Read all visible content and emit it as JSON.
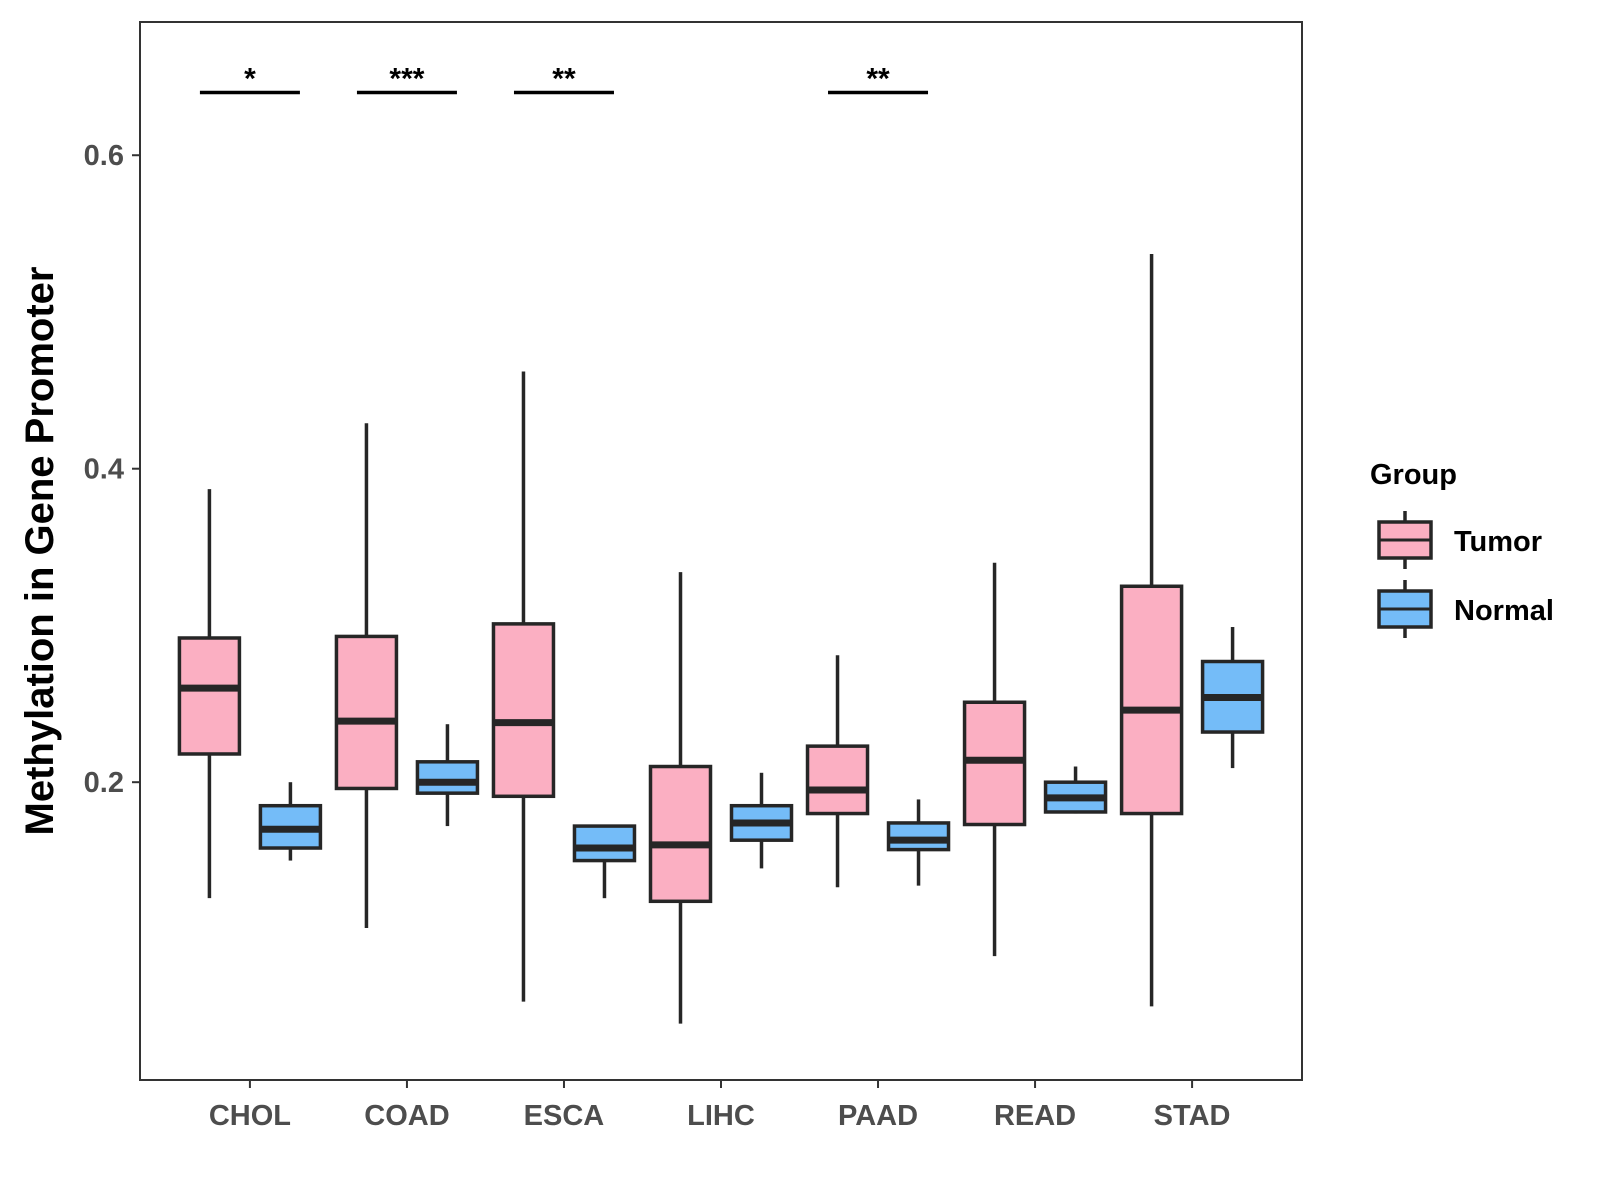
{
  "chart_data": {
    "type": "boxplot",
    "title": "",
    "xlabel": "",
    "ylabel": "Methylation in Gene Promoter",
    "ylim": [
      0.01,
      0.685
    ],
    "yticks": [
      0.2,
      0.4,
      0.6
    ],
    "ytick_labels": [
      "0.2",
      "0.4",
      "0.6"
    ],
    "categories": [
      "CHOL",
      "COAD",
      "ESCA",
      "LIHC",
      "PAAD",
      "READ",
      "STAD"
    ],
    "legend": {
      "title": "Group",
      "position": "right",
      "entries": [
        {
          "name": "Tumor",
          "color": "#fbafc2"
        },
        {
          "name": "Normal",
          "color": "#74bcf8"
        }
      ]
    },
    "series": [
      {
        "name": "Tumor",
        "color": "#fbafc2",
        "boxes": [
          {
            "min": 0.126,
            "q1": 0.218,
            "median": 0.26,
            "q3": 0.292,
            "max": 0.387
          },
          {
            "min": 0.107,
            "q1": 0.196,
            "median": 0.239,
            "q3": 0.293,
            "max": 0.429
          },
          {
            "min": 0.06,
            "q1": 0.191,
            "median": 0.238,
            "q3": 0.301,
            "max": 0.462
          },
          {
            "min": 0.046,
            "q1": 0.124,
            "median": 0.16,
            "q3": 0.21,
            "max": 0.334
          },
          {
            "min": 0.133,
            "q1": 0.18,
            "median": 0.195,
            "q3": 0.223,
            "max": 0.281
          },
          {
            "min": 0.089,
            "q1": 0.173,
            "median": 0.214,
            "q3": 0.251,
            "max": 0.34
          },
          {
            "min": 0.057,
            "q1": 0.18,
            "median": 0.246,
            "q3": 0.325,
            "max": 0.537
          }
        ]
      },
      {
        "name": "Normal",
        "color": "#74bcf8",
        "boxes": [
          {
            "min": 0.15,
            "q1": 0.158,
            "median": 0.17,
            "q3": 0.185,
            "max": 0.2
          },
          {
            "min": 0.172,
            "q1": 0.193,
            "median": 0.2,
            "q3": 0.213,
            "max": 0.237
          },
          {
            "min": 0.126,
            "q1": 0.15,
            "median": 0.158,
            "q3": 0.172,
            "max": 0.172
          },
          {
            "min": 0.145,
            "q1": 0.163,
            "median": 0.174,
            "q3": 0.185,
            "max": 0.206
          },
          {
            "min": 0.134,
            "q1": 0.157,
            "median": 0.163,
            "q3": 0.174,
            "max": 0.189
          },
          {
            "min": 0.18,
            "q1": 0.181,
            "median": 0.19,
            "q3": 0.2,
            "max": 0.21
          },
          {
            "min": 0.209,
            "q1": 0.232,
            "median": 0.254,
            "q3": 0.277,
            "max": 0.299
          }
        ]
      }
    ],
    "significance": [
      {
        "category": "CHOL",
        "label": "*",
        "y": 0.64
      },
      {
        "category": "COAD",
        "label": "***",
        "y": 0.64
      },
      {
        "category": "ESCA",
        "label": "**",
        "y": 0.64
      },
      {
        "category": "PAAD",
        "label": "**",
        "y": 0.64
      }
    ]
  }
}
